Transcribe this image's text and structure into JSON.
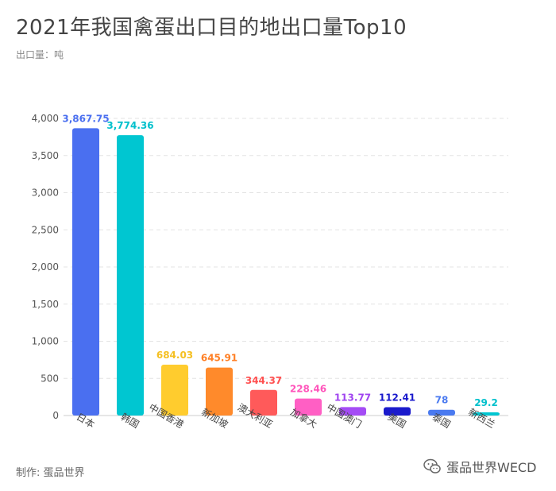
{
  "header": {
    "title": "2021年我国禽蛋出口目的地出口量Top10",
    "unit": "出口量：吨"
  },
  "footer": {
    "credit": "制作: 蛋品世界",
    "watermark_text": "蛋品世界WECD",
    "watermark_icon": "wechat-icon"
  },
  "chart_data": {
    "type": "bar",
    "title": "2021年我国禽蛋出口目的地出口量Top10",
    "ylabel": "出口量：吨",
    "xlabel": "",
    "categories": [
      "日本",
      "韩国",
      "中国香港",
      "新加坡",
      "澳大利亚",
      "加拿大",
      "中国澳门",
      "美国",
      "泰国",
      "新西兰"
    ],
    "values": [
      3867.75,
      3774.36,
      684.03,
      645.91,
      344.37,
      228.46,
      113.77,
      112.41,
      78,
      29.2
    ],
    "value_labels": [
      "3,867.75",
      "3,774.36",
      "684.03",
      "645.91",
      "344.37",
      "228.46",
      "113.77",
      "112.41",
      "78",
      "29.2"
    ],
    "colors": [
      "#4a6ff0",
      "#00c6d1",
      "#ffcc2e",
      "#ff8a2b",
      "#ff5a5a",
      "#ff5fc4",
      "#a44cf5",
      "#1a1acc",
      "#4a7af0",
      "#00c6d1"
    ],
    "label_colors": [
      "#4a6ff0",
      "#00c0cc",
      "#f5c023",
      "#ff7f24",
      "#ff5050",
      "#ff55bb",
      "#a044f0",
      "#1a1acc",
      "#4a7af0",
      "#00c0cc"
    ],
    "ylim": [
      0,
      4000
    ],
    "yticks": [
      0,
      500,
      1000,
      1500,
      2000,
      2500,
      3000,
      3500,
      4000
    ],
    "ytick_labels": [
      "0",
      "500",
      "1,000",
      "1,500",
      "2,000",
      "2,500",
      "3,000",
      "3,500",
      "4,000"
    ],
    "grid": true,
    "legend": "none"
  }
}
